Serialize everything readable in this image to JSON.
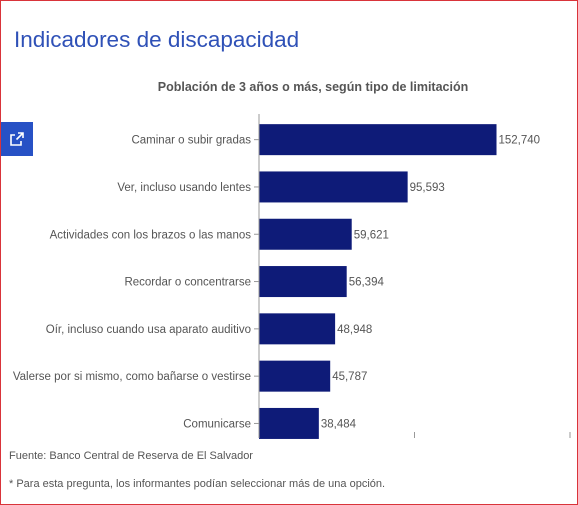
{
  "page": {
    "title": "Indicadores de discapacidad",
    "share_icon": "external-share-icon",
    "source": "Fuente: Banco Central de Reserva de El Salvador",
    "footnote": "* Para esta pregunta, los informantes podían seleccionar más de una opción."
  },
  "colors": {
    "bar": "#0e1b78",
    "title": "#2f51b7",
    "share_button": "#2751c5",
    "frame": "#d9343a"
  },
  "chart_data": {
    "type": "bar",
    "orientation": "horizontal",
    "title": "Población de 3 años o más, según tipo de limitación",
    "categories": [
      "Caminar o subir gradas",
      "Ver, incluso usando lentes",
      "Actividades con los brazos o las manos",
      "Recordar o concentrarse",
      "Oír, incluso cuando usa aparato auditivo",
      "Valerse por si mismo, como bañarse o vestirse",
      "Comunicarse"
    ],
    "values": [
      152740,
      95593,
      59621,
      56394,
      48948,
      45787,
      38484
    ],
    "value_labels": [
      "152,740",
      "95,593",
      "59,621",
      "56,394",
      "48,948",
      "45,787",
      "38,484"
    ],
    "xlim": [
      0,
      200000
    ],
    "grid": false
  }
}
